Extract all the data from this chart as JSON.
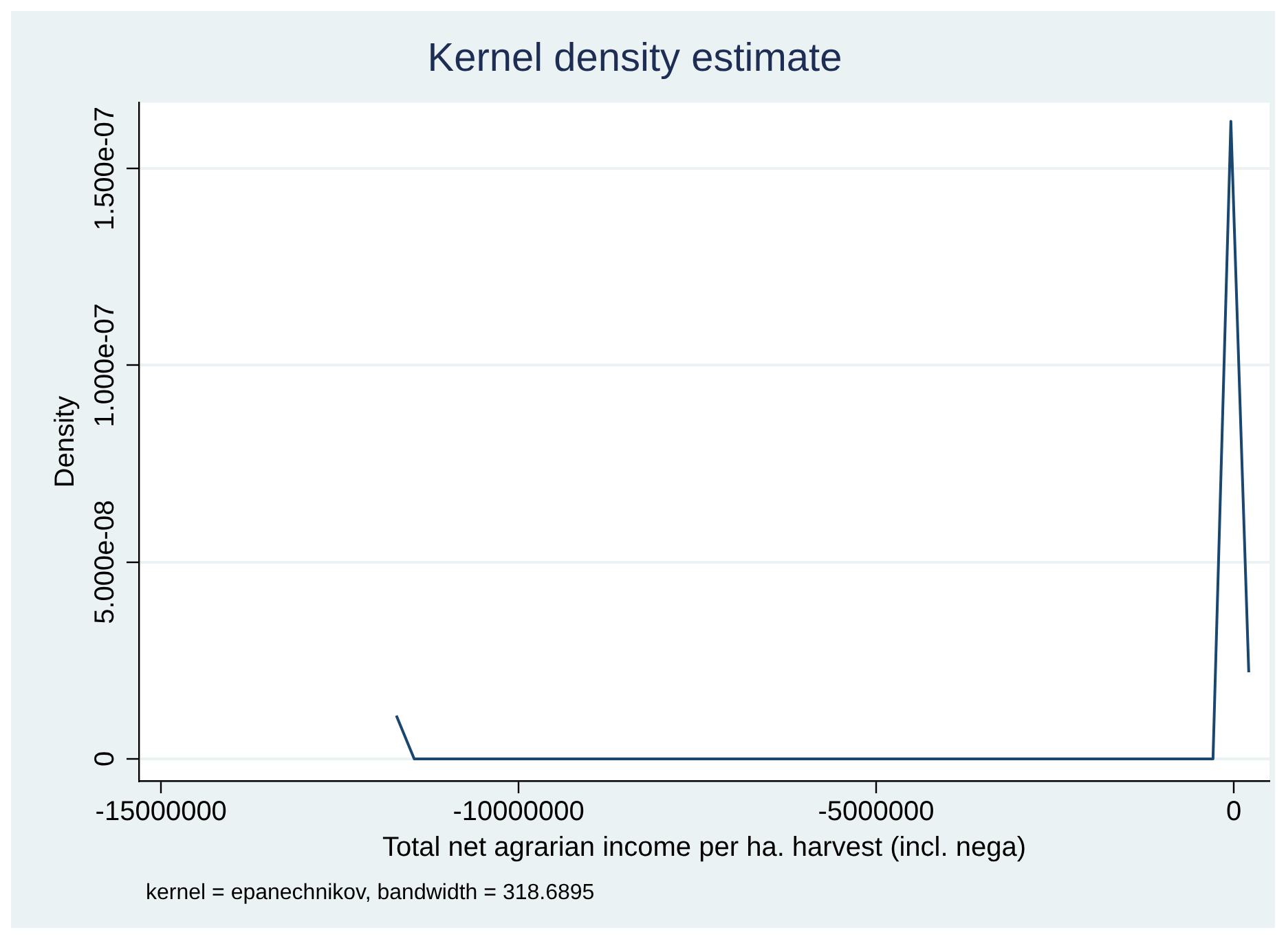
{
  "chart_data": {
    "type": "line",
    "title": "Kernel density estimate",
    "xlabel": "Total net agrarian income per ha. harvest (incl. nega)",
    "ylabel": "Density",
    "annotations": [
      "kernel = epanechnikov, bandwidth = 318.6895"
    ],
    "x": [
      -11710000,
      -11460000,
      -290000,
      -40000,
      210000
    ],
    "series": [
      {
        "color": "#1a476f",
        "values": [
          1.1e-08,
          0,
          0,
          1.62e-07,
          2.2e-08
        ]
      }
    ],
    "xlim": [
      -15310000,
      500000
    ],
    "ylim": [
      -5.6e-09,
      1.667e-07
    ],
    "xticks": [
      -15000000,
      -10000000,
      -5000000,
      0
    ],
    "yticks": [
      0,
      {
        "value": 5e-08,
        "label": "5.000e-08"
      },
      {
        "value": 1e-07,
        "label": "1.000e-07"
      },
      {
        "value": 1.5e-07,
        "label": "1.500e-07"
      }
    ],
    "grid": "y",
    "legend": false,
    "marker": "none",
    "line_style": "solid"
  }
}
